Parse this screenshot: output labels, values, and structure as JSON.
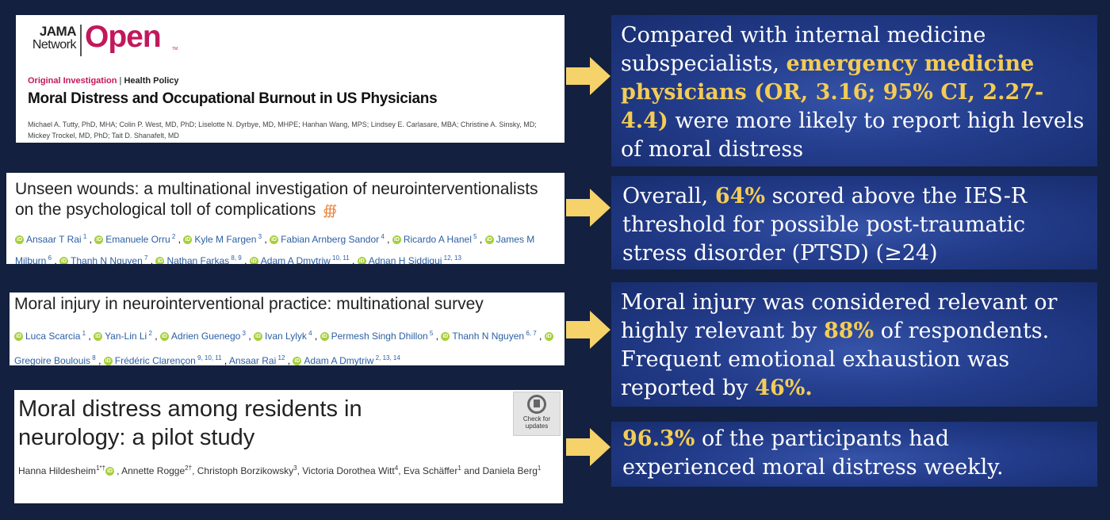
{
  "card1": {
    "logo_jama": "JAMA",
    "logo_network": "Network",
    "logo_open": "Open",
    "logo_tm": "TM",
    "category": "Original Investigation",
    "section": "Health Policy",
    "title": "Moral Distress and Occupational Burnout in US Physicians",
    "authors_line1": "Michael A. Tutty, PhD, MHA; Colin P. West, MD, PhD; Liselotte N. Dyrbye, MD, MHPE; Hanhan Wang, MPS; Lindsey E. Carlasare, MBA; Christine A. Sinsky, MD;",
    "authors_line2": "Mickey Trockel, MD, PhD; Tait D. Shanafelt, MD"
  },
  "card2": {
    "title": "Unseen wounds: a multinational investigation of neurointerventionalists on the psychological toll of complications",
    "authors": [
      {
        "name": "Ansaar T Rai",
        "sup": "1"
      },
      {
        "name": "Emanuele Orru",
        "sup": "2"
      },
      {
        "name": "Kyle M Fargen",
        "sup": "3"
      },
      {
        "name": "Fabian Arnberg Sandor",
        "sup": "4"
      },
      {
        "name": "Ricardo A Hanel",
        "sup": "5"
      },
      {
        "name": "James M Milburn",
        "sup": "6"
      },
      {
        "name": "Thanh N Nguyen",
        "sup": "7"
      },
      {
        "name": "Nathan Farkas",
        "sup": "8, 9"
      },
      {
        "name": "Adam A Dmytriw",
        "sup": "10, 11"
      },
      {
        "name": "Adnan H Siddiqui",
        "sup": "12, 13"
      }
    ]
  },
  "card3": {
    "title": "Moral injury in neurointerventional practice: multinational survey",
    "authors": [
      {
        "name": "Luca Scarcia",
        "sup": "1",
        "orcid": true
      },
      {
        "name": "Yan-Lin Li",
        "sup": "2",
        "orcid": true
      },
      {
        "name": "Adrien Guenego",
        "sup": "3",
        "orcid": true
      },
      {
        "name": "Ivan Lylyk",
        "sup": "4",
        "orcid": true
      },
      {
        "name": "Permesh Singh Dhillon",
        "sup": "5",
        "orcid": true
      },
      {
        "name": "Thanh N Nguyen",
        "sup": "6, 7",
        "orcid": true
      },
      {
        "name": "Gregoire Boulouis",
        "sup": "8",
        "orcid": true
      },
      {
        "name": "Frédéric Clarençon",
        "sup": "9, 10, 11",
        "orcid": true
      },
      {
        "name": "Ansaar Rai",
        "sup": "12",
        "orcid": false
      },
      {
        "name": "Adam A Dmytriw",
        "sup": "2, 13, 14",
        "orcid": true
      }
    ]
  },
  "card4": {
    "title_line1": "Moral distress among residents in",
    "title_line2": "neurology: a pilot study",
    "badge": "Check for updates",
    "authors_html_parts": {
      "a1": "Hanna Hildesheim",
      "a1_sup": "1*†",
      "a2": "Annette Rogge",
      "a2_sup": "2†",
      "a3": "Christoph Borzikowsky",
      "a3_sup": "3",
      "a4": "Victoria Dorothea Witt",
      "a4_sup": "4",
      "a5": "Eva Schäffer",
      "a5_sup": "1",
      "and": "and",
      "a6": "Daniela Berg",
      "a6_sup": "1"
    }
  },
  "quote1": {
    "p1": "Compared with internal medicine subspecialists, ",
    "hl": "emergency medicine physicians (OR, 3.16; 95% CI, 2.27-4.4)",
    "p2": " were more likely to report high levels of moral distress"
  },
  "quote2": {
    "p1": "Overall, ",
    "hl": "64%",
    "p2": " scored above the IES-R threshold for possible post-traumatic stress disorder (PTSD) (≥24)"
  },
  "quote3": {
    "p1": "Moral injury was considered relevant or highly relevant by ",
    "hl1": "88%",
    "p2": " of respondents. Frequent emotional exhaustion was reported by ",
    "hl2": "46%."
  },
  "quote4": {
    "hl": "96.3%",
    "p1": " of the participants had experienced moral distress weekly."
  },
  "colors": {
    "background": "#13203f",
    "highlight": "#f3cc55",
    "arrow": "#f5d26a",
    "jama_open": "#c2185b"
  }
}
